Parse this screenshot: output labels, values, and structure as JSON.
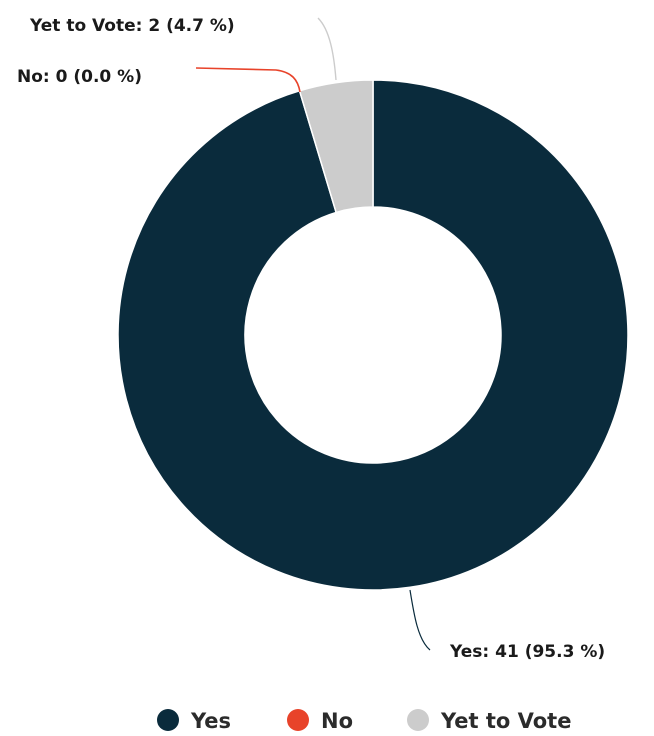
{
  "chart_data": {
    "type": "pie",
    "donut": true,
    "title": "",
    "legend_position": "bottom",
    "slices": [
      {
        "name": "Yes",
        "value": 41,
        "percent": 95.3,
        "color": "#0a2b3c",
        "label": "Yes: 41 (95.3 %)"
      },
      {
        "name": "No",
        "value": 0,
        "percent": 0.0,
        "color": "#e8432a",
        "label": "No: 0 (0.0 %)"
      },
      {
        "name": "Yet to Vote",
        "value": 2,
        "percent": 4.7,
        "color": "#cccccc",
        "label": "Yet to Vote: 2 (4.7 %)"
      }
    ]
  }
}
